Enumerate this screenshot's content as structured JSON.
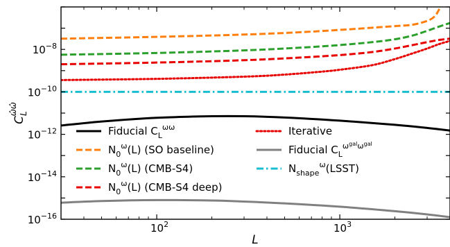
{
  "chart_data": {
    "type": "line",
    "xlabel": "L",
    "ylabel": "C_L^{ω̂ω̂}",
    "x_scale": "log",
    "y_scale": "log",
    "xlim": [
      30,
      4000
    ],
    "ylim": [
      1e-16,
      1e-06
    ],
    "grid": false,
    "legend_location": "lower-left, two columns",
    "x_ticks": [
      {
        "value": 100,
        "base": "10",
        "exp": "2"
      },
      {
        "value": 1000,
        "base": "10",
        "exp": "3"
      }
    ],
    "y_ticks": [
      {
        "value": 1e-16,
        "base": "10",
        "exp": "−16"
      },
      {
        "value": 1e-14,
        "base": "10",
        "exp": "−14"
      },
      {
        "value": 1e-12,
        "base": "10",
        "exp": "−12"
      },
      {
        "value": 1e-10,
        "base": "10",
        "exp": "−10"
      },
      {
        "value": 1e-08,
        "base": "10",
        "exp": "−8"
      }
    ],
    "series": [
      {
        "key": "fid_ww",
        "label": "Fiducial C_L^{ωω}",
        "legend_parts": [
          {
            "t": "Fiducial C"
          },
          {
            "t": "L",
            "pos": "sub"
          },
          {
            "t": "ωω",
            "pos": "sup"
          }
        ],
        "color": "#000000",
        "dash": "solid",
        "width": 3,
        "points": [
          [
            30,
            2.6e-12
          ],
          [
            50,
            4e-12
          ],
          [
            100,
            6e-12
          ],
          [
            200,
            7.1e-12
          ],
          [
            300,
            7.1e-12
          ],
          [
            500,
            6.2e-12
          ],
          [
            1000,
            4.4e-12
          ],
          [
            2000,
            2.8e-12
          ],
          [
            3000,
            2e-12
          ],
          [
            4000,
            1.5e-12
          ]
        ]
      },
      {
        "key": "n0_so",
        "label": "N_0^ω(L) (SO baseline)",
        "legend_parts": [
          {
            "t": "N"
          },
          {
            "t": "0",
            "pos": "sub"
          },
          {
            "t": "ω",
            "pos": "sup"
          },
          {
            "t": "(L) (SO baseline)"
          }
        ],
        "color": "#ff7f0e",
        "dash": "dashed",
        "width": 3,
        "points": [
          [
            30,
            3.2e-08
          ],
          [
            100,
            3.9e-08
          ],
          [
            300,
            5e-08
          ],
          [
            600,
            6.4e-08
          ],
          [
            1000,
            8.3e-08
          ],
          [
            1500,
            1.05e-07
          ],
          [
            2000,
            1.25e-07
          ],
          [
            2500,
            1.45e-07
          ],
          [
            3000,
            2.2e-07
          ],
          [
            3300,
            3.6e-07
          ],
          [
            3500,
            8e-07
          ]
        ]
      },
      {
        "key": "n0_s4",
        "label": "N_0^ω(L) (CMB-S4)",
        "legend_parts": [
          {
            "t": "N"
          },
          {
            "t": "0",
            "pos": "sub"
          },
          {
            "t": "ω",
            "pos": "sup"
          },
          {
            "t": "(L) (CMB-S4)"
          }
        ],
        "color": "#2ca02c",
        "dash": "dashed",
        "width": 3,
        "points": [
          [
            30,
            5.6e-09
          ],
          [
            100,
            6.8e-09
          ],
          [
            300,
            9e-09
          ],
          [
            600,
            1.2e-08
          ],
          [
            1000,
            1.6e-08
          ],
          [
            1500,
            2.2e-08
          ],
          [
            2000,
            3e-08
          ],
          [
            2500,
            4.5e-08
          ],
          [
            3000,
            7.5e-08
          ],
          [
            3500,
            1.2e-07
          ],
          [
            4000,
            1.75e-07
          ]
        ]
      },
      {
        "key": "n0_s4deep",
        "label": "N_0^ω(L) (CMB-S4 deep)",
        "legend_parts": [
          {
            "t": "N"
          },
          {
            "t": "0",
            "pos": "sub"
          },
          {
            "t": "ω",
            "pos": "sup"
          },
          {
            "t": "(L) (CMB-S4 deep)"
          }
        ],
        "color": "#e80000",
        "dash": "dashed",
        "width": 3,
        "points": [
          [
            30,
            2e-09
          ],
          [
            100,
            2.4e-09
          ],
          [
            300,
            3.1e-09
          ],
          [
            600,
            4.1e-09
          ],
          [
            1000,
            5.4e-09
          ],
          [
            1500,
            7.5e-09
          ],
          [
            2000,
            1.1e-08
          ],
          [
            2500,
            1.6e-08
          ],
          [
            3000,
            2.2e-08
          ],
          [
            3500,
            2.8e-08
          ],
          [
            4000,
            3.2e-08
          ]
        ]
      },
      {
        "key": "iterative",
        "label": "Iterative",
        "legend_parts": [
          {
            "t": "Iterative"
          }
        ],
        "color": "#e80000",
        "dash": "dotted",
        "width": 3,
        "points": [
          [
            30,
            3.6e-10
          ],
          [
            100,
            4.1e-10
          ],
          [
            300,
            5.2e-10
          ],
          [
            500,
            6.5e-10
          ],
          [
            800,
            9e-10
          ],
          [
            1000,
            1.1e-09
          ],
          [
            1500,
            1.8e-09
          ],
          [
            2000,
            3.5e-09
          ],
          [
            2500,
            6.5e-09
          ],
          [
            3000,
            1.1e-08
          ],
          [
            3500,
            1.8e-08
          ],
          [
            4000,
            2.5e-08
          ]
        ]
      },
      {
        "key": "fid_gal",
        "label": "Fiducial C_L^{ωgal ωgal}",
        "legend_parts": [
          {
            "t": "Fiducial C"
          },
          {
            "t": "L",
            "pos": "sub"
          },
          {
            "t": "ω",
            "pos": "sup"
          },
          {
            "t": "gal",
            "pos": "supsup"
          },
          {
            "t": "ω",
            "pos": "sup"
          },
          {
            "t": "gal",
            "pos": "supsup"
          }
        ],
        "color": "#808080",
        "dash": "solid",
        "width": 3,
        "points": [
          [
            30,
            6e-16
          ],
          [
            50,
            7.2e-16
          ],
          [
            100,
            8e-16
          ],
          [
            200,
            7.6e-16
          ],
          [
            300,
            6.8e-16
          ],
          [
            500,
            5.6e-16
          ],
          [
            1000,
            3.9e-16
          ],
          [
            2000,
            2.4e-16
          ],
          [
            3000,
            1.7e-16
          ],
          [
            4000,
            1.25e-16
          ]
        ]
      },
      {
        "key": "nshape",
        "label": "N_shape^ω(LSST)",
        "legend_parts": [
          {
            "t": "N"
          },
          {
            "t": "shape",
            "pos": "sub"
          },
          {
            "t": "ω",
            "pos": "sup"
          },
          {
            "t": "(LSST)"
          }
        ],
        "color": "#17becf",
        "dash": "dashdot",
        "width": 3,
        "points": [
          [
            30,
            1e-10
          ],
          [
            4000,
            1e-10
          ]
        ]
      }
    ],
    "legend_columns": [
      [
        "fid_ww",
        "n0_so",
        "n0_s4",
        "n0_s4deep"
      ],
      [
        "iterative",
        "fid_gal",
        "nshape"
      ]
    ]
  }
}
